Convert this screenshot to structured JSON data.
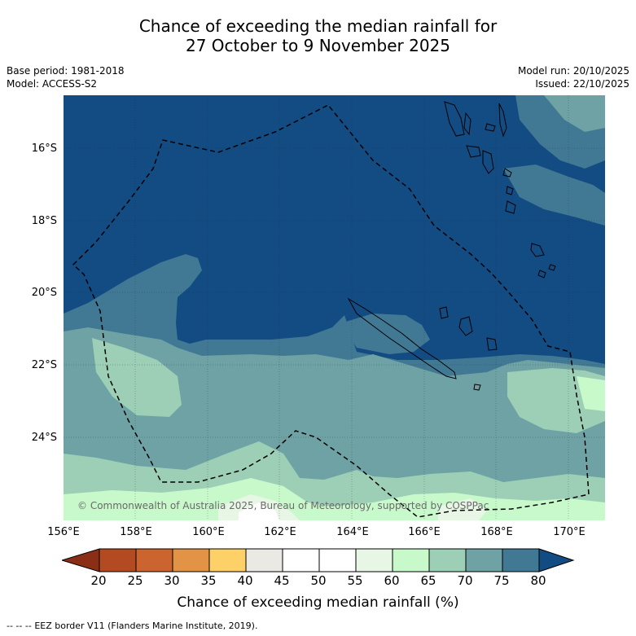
{
  "title": {
    "line1": "Chance of exceeding the median rainfall for",
    "line2": "27 October to 9 November 2025"
  },
  "meta": {
    "base_period": "Base period: 1981-2018",
    "model": "Model: ACCESS-S2",
    "model_run": "Model run: 20/10/2025",
    "issued": "Issued: 22/10/2025"
  },
  "axes": {
    "lat_labels": [
      "16°S",
      "18°S",
      "20°S",
      "22°S",
      "24°S"
    ],
    "lon_labels": [
      "156°E",
      "158°E",
      "160°E",
      "162°E",
      "164°E",
      "166°E",
      "168°E",
      "170°E"
    ]
  },
  "copyright": "© Commonwealth of Australia 2025, Bureau of Meteorology, supported by COSPPac",
  "colorbar": {
    "title": "Chance of exceeding median rainfall (%)",
    "ticks": [
      "20",
      "25",
      "30",
      "35",
      "40",
      "45",
      "50",
      "55",
      "60",
      "65",
      "70",
      "75",
      "80"
    ],
    "colors": [
      "#8b2e16",
      "#b44a22",
      "#cc6430",
      "#e39346",
      "#fdd068",
      "#ebe9e3",
      "#ffffff",
      "#ffffff",
      "#e7f6e5",
      "#c7f9cb",
      "#9ccfb6",
      "#6ea2a4",
      "#417894",
      "#134b83"
    ]
  },
  "legend": {
    "dash": "--  --  --",
    "text": "EEZ border V11 (Flanders Marine Institute, 2019)."
  },
  "map_colors": {
    "c80": "#134b83",
    "c75": "#417894",
    "c70": "#6ea2a4",
    "c65": "#9ccfb6",
    "c60": "#c7f9cb",
    "c55": "#e7f6e5",
    "c50": "#ffffff"
  }
}
